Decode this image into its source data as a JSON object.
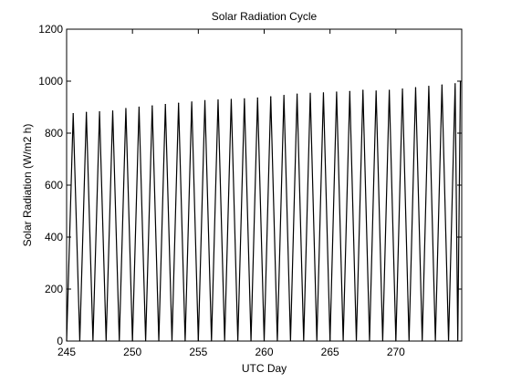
{
  "chart_data": {
    "type": "line",
    "title": "Solar Radiation Cycle",
    "xlabel": "UTC Day",
    "ylabel": "Solar Radiation (W/m2 h)",
    "xlim": [
      245,
      275
    ],
    "ylim": [
      0,
      1200
    ],
    "xticks": [
      245,
      250,
      255,
      260,
      265,
      270
    ],
    "yticks": [
      0,
      200,
      400,
      600,
      800,
      1000,
      1200
    ],
    "grid": false,
    "legend": "none",
    "line_color": "#000000",
    "series": [
      {
        "x": [
          245.0,
          245.5,
          246.0,
          246.5,
          247.0,
          247.5,
          248.0,
          248.5,
          249.0,
          249.5,
          250.0,
          250.5,
          251.0,
          251.5,
          252.0,
          252.5,
          253.0,
          253.5,
          254.0,
          254.5,
          255.0,
          255.5,
          256.0,
          256.5,
          257.0,
          257.5,
          258.0,
          258.5,
          259.0,
          259.5,
          260.0,
          260.5,
          261.0,
          261.5,
          262.0,
          262.5,
          263.0,
          263.5,
          264.0,
          264.5,
          265.0,
          265.5,
          266.0,
          266.5,
          267.0,
          267.5,
          268.0,
          268.5,
          269.0,
          269.5,
          270.0,
          270.5,
          271.0,
          271.5,
          272.0,
          272.5,
          273.0,
          273.5,
          274.0,
          274.5,
          274.7,
          274.9
        ],
        "y": [
          0,
          875,
          0,
          880,
          0,
          882,
          0,
          885,
          0,
          895,
          0,
          900,
          0,
          905,
          0,
          910,
          0,
          915,
          0,
          920,
          0,
          925,
          0,
          928,
          0,
          930,
          0,
          932,
          0,
          935,
          0,
          940,
          0,
          945,
          0,
          950,
          0,
          953,
          0,
          955,
          0,
          958,
          0,
          960,
          0,
          965,
          0,
          962,
          0,
          965,
          0,
          970,
          0,
          975,
          0,
          980,
          0,
          985,
          0,
          990,
          0,
          1000
        ]
      }
    ]
  }
}
